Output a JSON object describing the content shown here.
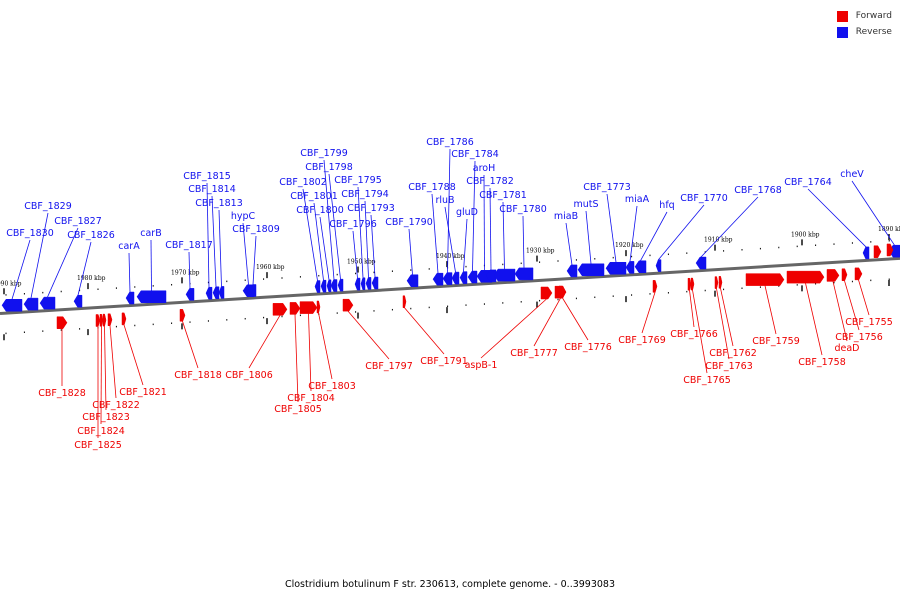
{
  "legend": {
    "forward_label": "Forward",
    "reverse_label": "Reverse"
  },
  "colors": {
    "forward": "#ee0000",
    "reverse": "#1111ee",
    "backbone": "#666666"
  },
  "caption": "Clostridium botulinum F str. 230613, complete genome. - 0..3993083",
  "ticks": [
    "1990 kbp",
    "1980 kbp",
    "1970 kbp",
    "1960 kbp",
    "1950 kbp",
    "1940 kbp",
    "1930 kbp",
    "1920 kbp",
    "1910 kbp",
    "1900 kbp",
    "1890 kbp"
  ],
  "reverse_genes": [
    "CBF_1830",
    "CBF_1829",
    "CBF_1827",
    "CBF_1826",
    "carA",
    "carB",
    "CBF_1817",
    "CBF_1815",
    "CBF_1814",
    "CBF_1813",
    "hypC",
    "CBF_1809",
    "CBF_1802",
    "CBF_1801",
    "CBF_1800",
    "CBF_1799",
    "CBF_1798",
    "CBF_1796",
    "CBF_1795",
    "CBF_1794",
    "CBF_1793",
    "CBF_1790",
    "CBF_1788",
    "CBF_1786",
    "rluB",
    "gluD",
    "CBF_1784",
    "aroH",
    "CBF_1782",
    "CBF_1781",
    "CBF_1780",
    "miaB",
    "mutS",
    "CBF_1773",
    "miaA",
    "hfq",
    "CBF_1770",
    "CBF_1768",
    "CBF_1764",
    "cheV"
  ],
  "forward_genes": [
    "CBF_1828",
    "CBF_1825",
    "CBF_1824",
    "CBF_1823",
    "CBF_1822",
    "CBF_1821",
    "CBF_1818",
    "CBF_1806",
    "CBF_1805",
    "CBF_1804",
    "CBF_1803",
    "CBF_1797",
    "CBF_1791",
    "aspB-1",
    "CBF_1777",
    "CBF_1776",
    "CBF_1769",
    "CBF_1766",
    "CBF_1765",
    "CBF_1763",
    "CBF_1762",
    "CBF_1759",
    "CBF_1758",
    "deaD",
    "CBF_1756",
    "CBF_1755"
  ]
}
